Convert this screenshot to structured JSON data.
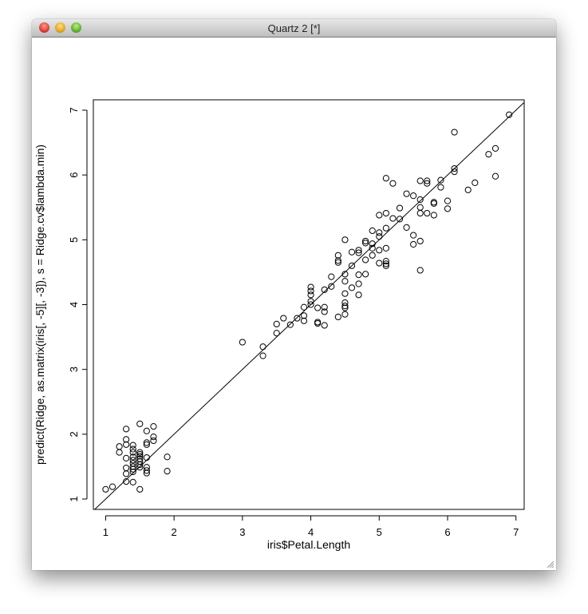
{
  "window": {
    "title": "Quartz 2 [*]"
  },
  "chart_data": {
    "type": "scatter",
    "xlabel": "iris$Petal.Length",
    "ylabel": "predict(Ridge, as.matrix(iris[, -5][, -3]), s = Ridge.cv$lambda.min)",
    "xlim": [
      0.82,
      7.12
    ],
    "ylim": [
      0.84,
      7.16
    ],
    "x_ticks": [
      "1",
      "2",
      "3",
      "4",
      "5",
      "6",
      "7"
    ],
    "y_ticks": [
      "1",
      "2",
      "3",
      "4",
      "5",
      "6",
      "7"
    ],
    "reference_line": {
      "intercept": 0,
      "slope": 1
    },
    "points": [
      [
        1.0,
        1.15
      ],
      [
        1.1,
        1.19
      ],
      [
        1.2,
        1.72
      ],
      [
        1.2,
        1.81
      ],
      [
        1.3,
        2.08
      ],
      [
        1.3,
        1.92
      ],
      [
        1.3,
        1.84
      ],
      [
        1.3,
        1.63
      ],
      [
        1.3,
        1.48
      ],
      [
        1.3,
        1.39
      ],
      [
        1.3,
        1.27
      ],
      [
        1.4,
        1.83
      ],
      [
        1.4,
        1.77
      ],
      [
        1.4,
        1.72
      ],
      [
        1.4,
        1.65
      ],
      [
        1.4,
        1.6
      ],
      [
        1.4,
        1.55
      ],
      [
        1.4,
        1.5
      ],
      [
        1.4,
        1.46
      ],
      [
        1.4,
        1.42
      ],
      [
        1.4,
        1.26
      ],
      [
        1.5,
        2.16
      ],
      [
        1.5,
        1.72
      ],
      [
        1.5,
        1.69
      ],
      [
        1.5,
        1.66
      ],
      [
        1.5,
        1.62
      ],
      [
        1.5,
        1.58
      ],
      [
        1.5,
        1.53
      ],
      [
        1.5,
        1.49
      ],
      [
        1.5,
        1.15
      ],
      [
        1.6,
        2.05
      ],
      [
        1.6,
        1.87
      ],
      [
        1.6,
        1.84
      ],
      [
        1.6,
        1.64
      ],
      [
        1.6,
        1.49
      ],
      [
        1.6,
        1.44
      ],
      [
        1.6,
        1.4
      ],
      [
        1.7,
        2.12
      ],
      [
        1.7,
        1.96
      ],
      [
        1.7,
        1.9
      ],
      [
        1.9,
        1.65
      ],
      [
        1.9,
        1.43
      ],
      [
        3.0,
        3.42
      ],
      [
        3.3,
        3.35
      ],
      [
        3.3,
        3.21
      ],
      [
        3.5,
        3.7
      ],
      [
        3.5,
        3.56
      ],
      [
        3.6,
        3.79
      ],
      [
        3.7,
        3.69
      ],
      [
        3.8,
        3.79
      ],
      [
        3.9,
        3.96
      ],
      [
        3.9,
        3.83
      ],
      [
        3.9,
        3.75
      ],
      [
        4.0,
        4.27
      ],
      [
        4.0,
        4.21
      ],
      [
        4.0,
        4.15
      ],
      [
        4.0,
        4.05
      ],
      [
        4.0,
        4.0
      ],
      [
        4.1,
        3.95
      ],
      [
        4.1,
        3.73
      ],
      [
        4.1,
        3.71
      ],
      [
        4.2,
        3.96
      ],
      [
        4.2,
        3.89
      ],
      [
        4.2,
        3.68
      ],
      [
        4.2,
        4.23
      ],
      [
        4.3,
        4.43
      ],
      [
        4.3,
        4.28
      ],
      [
        4.4,
        4.76
      ],
      [
        4.4,
        4.68
      ],
      [
        4.4,
        4.65
      ],
      [
        4.4,
        3.81
      ],
      [
        4.5,
        5.0
      ],
      [
        4.5,
        4.47
      ],
      [
        4.5,
        4.36
      ],
      [
        4.5,
        4.17
      ],
      [
        4.5,
        4.03
      ],
      [
        4.5,
        3.98
      ],
      [
        4.5,
        3.95
      ],
      [
        4.5,
        3.85
      ],
      [
        4.6,
        4.6
      ],
      [
        4.6,
        4.81
      ],
      [
        4.6,
        4.26
      ],
      [
        4.7,
        4.84
      ],
      [
        4.7,
        4.8
      ],
      [
        4.7,
        4.46
      ],
      [
        4.7,
        4.32
      ],
      [
        4.7,
        4.15
      ],
      [
        4.8,
        4.98
      ],
      [
        4.8,
        4.95
      ],
      [
        4.8,
        4.69
      ],
      [
        4.8,
        4.47
      ],
      [
        4.9,
        5.14
      ],
      [
        4.9,
        4.94
      ],
      [
        4.9,
        4.87
      ],
      [
        4.9,
        4.76
      ],
      [
        5.0,
        5.38
      ],
      [
        5.0,
        5.11
      ],
      [
        5.0,
        5.05
      ],
      [
        5.0,
        4.84
      ],
      [
        5.0,
        4.64
      ],
      [
        5.1,
        5.95
      ],
      [
        5.1,
        5.41
      ],
      [
        5.1,
        5.18
      ],
      [
        5.1,
        4.87
      ],
      [
        5.1,
        4.67
      ],
      [
        5.1,
        4.63
      ],
      [
        5.1,
        4.6
      ],
      [
        5.2,
        5.87
      ],
      [
        5.2,
        5.33
      ],
      [
        5.3,
        5.49
      ],
      [
        5.3,
        5.32
      ],
      [
        5.4,
        5.71
      ],
      [
        5.4,
        5.19
      ],
      [
        5.5,
        5.68
      ],
      [
        5.5,
        5.07
      ],
      [
        5.5,
        4.93
      ],
      [
        5.6,
        5.91
      ],
      [
        5.6,
        5.62
      ],
      [
        5.6,
        5.5
      ],
      [
        5.6,
        5.41
      ],
      [
        5.6,
        4.98
      ],
      [
        5.6,
        4.53
      ],
      [
        5.7,
        5.91
      ],
      [
        5.7,
        5.87
      ],
      [
        5.7,
        5.41
      ],
      [
        5.8,
        5.58
      ],
      [
        5.8,
        5.56
      ],
      [
        5.8,
        5.38
      ],
      [
        5.9,
        5.92
      ],
      [
        5.9,
        5.81
      ],
      [
        6.0,
        5.6
      ],
      [
        6.0,
        5.48
      ],
      [
        6.1,
        6.66
      ],
      [
        6.1,
        6.1
      ],
      [
        6.1,
        6.05
      ],
      [
        6.3,
        5.77
      ],
      [
        6.4,
        5.88
      ],
      [
        6.6,
        6.32
      ],
      [
        6.7,
        6.41
      ],
      [
        6.7,
        5.98
      ],
      [
        6.9,
        6.93
      ]
    ]
  }
}
